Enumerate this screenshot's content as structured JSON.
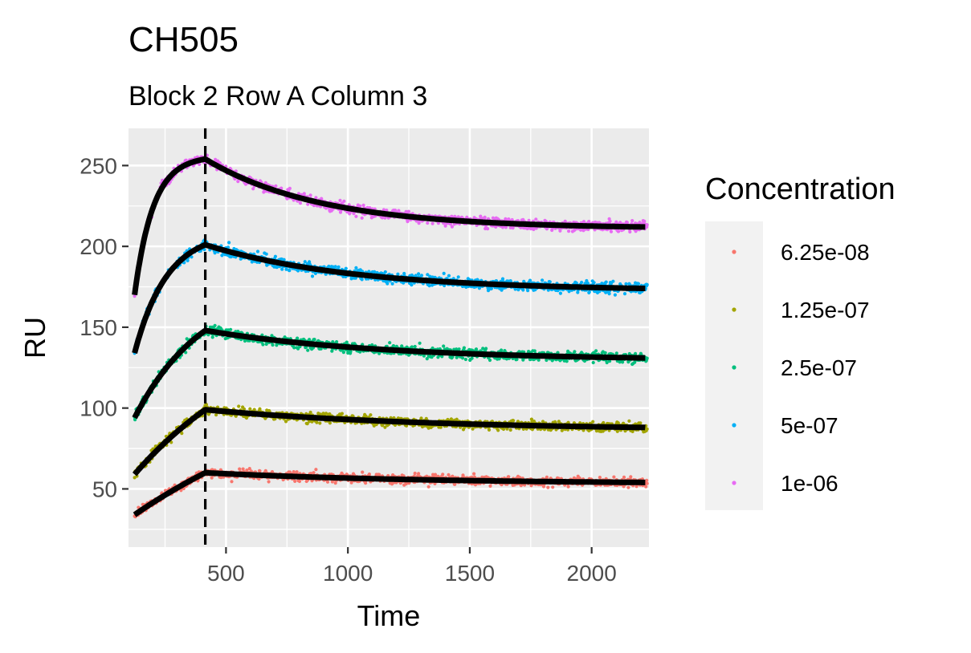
{
  "chart_data": {
    "type": "line",
    "title": "CH505",
    "subtitle": "Block 2 Row A Column 3",
    "xlabel": "Time",
    "ylabel": "RU",
    "xlim": [
      100,
      2235
    ],
    "ylim": [
      14,
      273
    ],
    "x_ticks": [
      500,
      1000,
      1500,
      2000
    ],
    "y_ticks": [
      50,
      100,
      150,
      200,
      250
    ],
    "x_minor": [
      250,
      750,
      1250,
      1750,
      2250
    ],
    "y_minor": [
      25,
      75,
      125,
      175,
      225
    ],
    "grid": true,
    "panel_background": "#ebebeb",
    "grid_color": "#ffffff",
    "injection_end_line": {
      "x": 415,
      "style": "dashed",
      "color": "#000000"
    },
    "fit_line_color": "#000000",
    "legend": {
      "title": "Concentration",
      "position": "right",
      "background": "#f2f2f2"
    },
    "series": [
      {
        "name": "6.25e-08",
        "color": "#F8766D",
        "fit": {
          "t0": 125,
          "t_switch": 415,
          "t_end": 2220,
          "y_start": 34,
          "y_peak": 60,
          "y_end": 54,
          "rise_shape": 0.3,
          "decay_shape": 2.0
        },
        "noise": 2.2
      },
      {
        "name": "1.25e-07",
        "color": "#A3A500",
        "fit": {
          "t0": 125,
          "t_switch": 415,
          "t_end": 2220,
          "y_start": 59,
          "y_peak": 99,
          "y_end": 88,
          "rise_shape": 0.5,
          "decay_shape": 2.0
        },
        "noise": 2.2
      },
      {
        "name": "2.5e-07",
        "color": "#00BF7D",
        "fit": {
          "t0": 125,
          "t_switch": 415,
          "t_end": 2220,
          "y_start": 94,
          "y_peak": 148,
          "y_end": 131,
          "rise_shape": 1.0,
          "decay_shape": 2.5
        },
        "noise": 2.4
      },
      {
        "name": "5e-07",
        "color": "#00B0F6",
        "fit": {
          "t0": 125,
          "t_switch": 415,
          "t_end": 2220,
          "y_start": 134,
          "y_peak": 201,
          "y_end": 174,
          "rise_shape": 2.2,
          "decay_shape": 3.0
        },
        "noise": 2.5
      },
      {
        "name": "1e-06",
        "color": "#E76BF3",
        "fit": {
          "t0": 125,
          "t_switch": 415,
          "t_end": 2220,
          "y_start": 170,
          "y_peak": 254,
          "y_end": 212,
          "rise_shape": 3.8,
          "decay_shape": 3.8
        },
        "noise": 2.5
      }
    ]
  }
}
